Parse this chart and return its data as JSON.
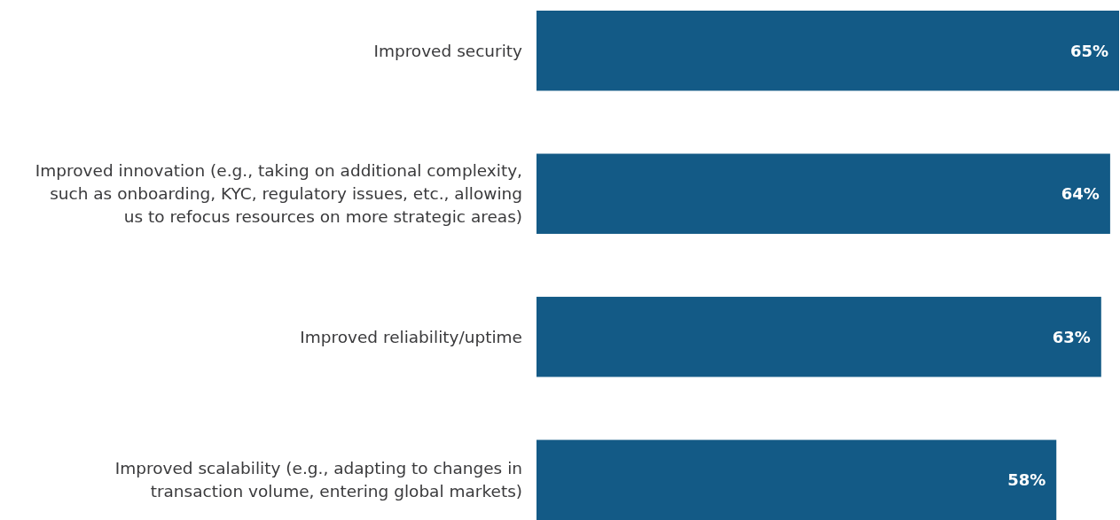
{
  "chart_data": {
    "type": "bar",
    "orientation": "horizontal",
    "categories": [
      "Improved security",
      "Improved innovation (e.g., taking on additional complexity,\nsuch as onboarding, KYC, regulatory issues, etc., allowing\nus to refocus resources on more strategic areas)",
      "Improved reliability/uptime",
      "Improved scalability (e.g., adapting to changes in\ntransaction volume, entering global markets)"
    ],
    "values": [
      65,
      64,
      63,
      58
    ],
    "value_labels": [
      "65%",
      "64%",
      "63%",
      "58%"
    ],
    "color": "#135a86"
  }
}
